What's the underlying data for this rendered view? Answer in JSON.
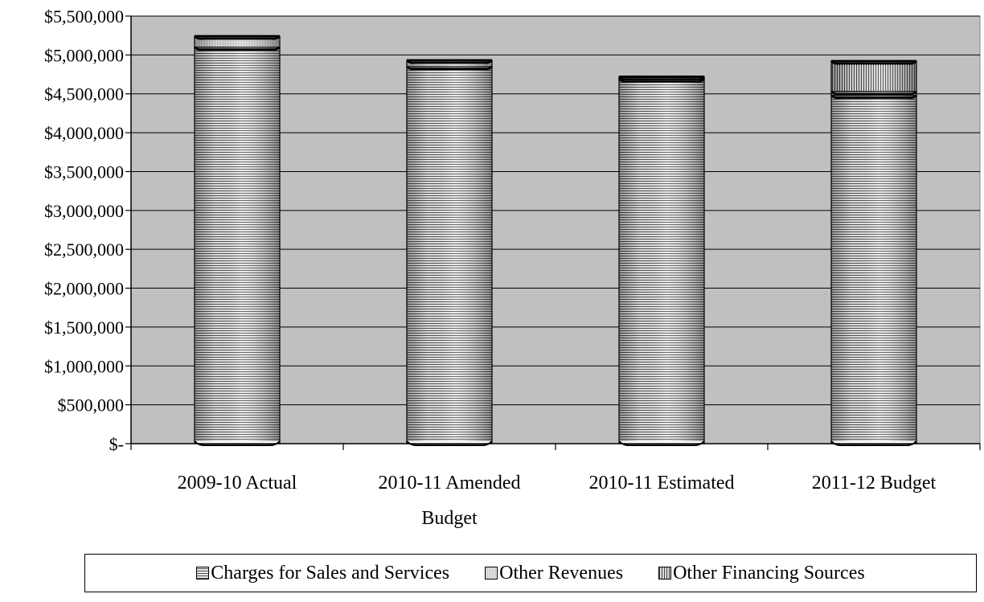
{
  "chart_data": {
    "type": "bar",
    "stacked": true,
    "categories": [
      "2009-10 Actual",
      "2010-11 Amended Budget",
      "2010-11 Estimated",
      "2011-12 Budget"
    ],
    "category_lines": [
      [
        "2009-10 Actual"
      ],
      [
        "2010-11 Amended",
        "Budget"
      ],
      [
        "2010-11 Estimated"
      ],
      [
        "2011-12 Budget"
      ]
    ],
    "series": [
      {
        "name": "Charges for Sales and Services",
        "values": [
          5100000,
          4850000,
          4690000,
          4480000
        ]
      },
      {
        "name": "Other Revenues",
        "values": [
          140000,
          80000,
          30000,
          50000
        ]
      },
      {
        "name": "Other Financing Sources",
        "values": [
          0,
          0,
          0,
          390000
        ]
      }
    ],
    "ylim": [
      0,
      5500000
    ],
    "ytick_values": [
      0,
      500000,
      1000000,
      1500000,
      2000000,
      2500000,
      3000000,
      3500000,
      4000000,
      4500000,
      5000000,
      5500000
    ],
    "ytick_labels": [
      "$-",
      "$500,000",
      "$1,000,000",
      "$1,500,000",
      "$2,000,000",
      "$2,500,000",
      "$3,000,000",
      "$3,500,000",
      "$4,000,000",
      "$4,500,000",
      "$5,000,000",
      "$5,500,000"
    ],
    "grid": true,
    "legend_position": "bottom",
    "colors": {
      "plot_bg": "#c0c0c0",
      "grid": "#000000",
      "bar_fill_light": "#e8e8e8",
      "bar_fill_dark": "#555555"
    }
  }
}
